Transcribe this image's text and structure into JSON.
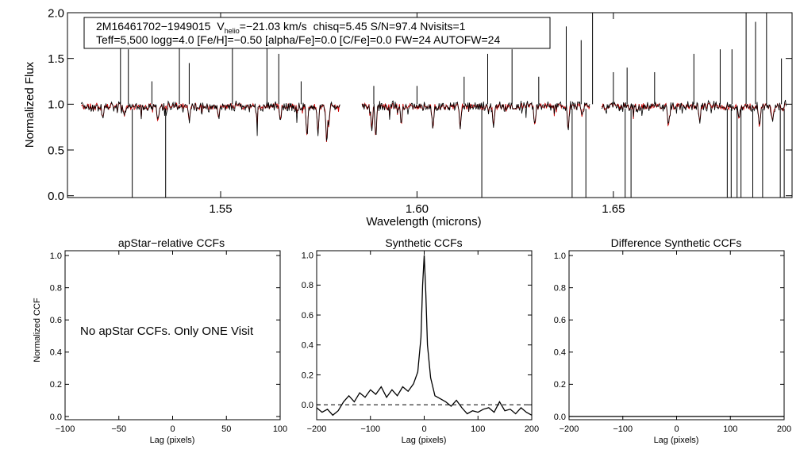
{
  "chart_data": [
    {
      "type": "line",
      "ylabel": "Normalized Flux",
      "xlabel": "Wavelength (microns)",
      "xlim": [
        1.511,
        1.6955
      ],
      "ylim": [
        -0.02,
        2.0
      ],
      "xticks": [
        {
          "v": 1.55,
          "label": "1.55"
        },
        {
          "v": 1.6,
          "label": "1.60"
        },
        {
          "v": 1.65,
          "label": "1.65"
        }
      ],
      "yticks": [
        {
          "v": 0.0,
          "label": "0.0"
        },
        {
          "v": 0.5,
          "label": "0.5"
        },
        {
          "v": 1.0,
          "label": "1.0"
        },
        {
          "v": 1.5,
          "label": "1.5"
        },
        {
          "v": 2.0,
          "label": "2.0"
        }
      ],
      "info_line1": {
        "star": "2M16461702−1949015",
        "v_label": "V",
        "v_sub": "helio",
        "v_value": "=−21.03 km/s",
        "rest": "chisq=5.45  S/N=97.4  Nvisits=1"
      },
      "info_line2": "Teff=5,500 logg=4.0 [Fe/H]=−0.50 [alpha/Fe]=0.0 [C/Fe]=0.0 FW=24 AUTOFW=24",
      "colors": {
        "observed": "#000000",
        "model": "#cc0000"
      },
      "chips": [
        [
          1.5145,
          1.5805
        ],
        [
          1.586,
          1.644
        ],
        [
          1.647,
          1.694
        ]
      ],
      "emission_spikes": [
        [
          1.5245,
          1.75
        ],
        [
          1.5265,
          1.6
        ],
        [
          1.5325,
          1.25
        ],
        [
          1.5395,
          1.85
        ],
        [
          1.542,
          1.45
        ],
        [
          1.553,
          1.75
        ],
        [
          1.5618,
          1.85
        ],
        [
          1.5648,
          1.55
        ],
        [
          1.5705,
          1.25
        ],
        [
          1.589,
          1.2
        ],
        [
          1.6,
          1.2
        ],
        [
          1.612,
          1.3
        ],
        [
          1.618,
          1.55
        ],
        [
          1.6242,
          1.6
        ],
        [
          1.631,
          1.3
        ],
        [
          1.638,
          1.85
        ],
        [
          1.6418,
          1.7
        ],
        [
          1.6447,
          2.0
        ],
        [
          1.65,
          1.35
        ],
        [
          1.6535,
          1.4
        ],
        [
          1.6605,
          1.35
        ],
        [
          1.6705,
          1.55
        ],
        [
          1.6772,
          1.6
        ],
        [
          1.6802,
          1.6
        ],
        [
          1.6838,
          2.0
        ],
        [
          1.6862,
          1.9
        ],
        [
          1.689,
          2.0
        ],
        [
          1.6928,
          1.5
        ]
      ],
      "bad_pixels": [
        1.5275,
        1.536,
        1.6165,
        1.6395,
        1.643,
        1.653,
        1.6545,
        1.679,
        1.68,
        1.6815,
        1.6825,
        1.6855,
        1.688,
        1.6925,
        1.6935
      ],
      "model_absorptions": [
        [
          1.52,
          0.84
        ],
        [
          1.5255,
          0.86
        ],
        [
          1.534,
          0.8
        ],
        [
          1.542,
          0.8
        ],
        [
          1.5495,
          0.84
        ],
        [
          1.5592,
          0.86
        ],
        [
          1.5652,
          0.82
        ],
        [
          1.572,
          0.6
        ],
        [
          1.5748,
          0.68
        ],
        [
          1.577,
          0.55
        ],
        [
          1.5775,
          0.75
        ],
        [
          1.5885,
          0.72
        ],
        [
          1.5895,
          0.6
        ],
        [
          1.596,
          0.76
        ],
        [
          1.604,
          0.74
        ],
        [
          1.611,
          0.72
        ],
        [
          1.6195,
          0.76
        ],
        [
          1.63,
          0.74
        ],
        [
          1.6385,
          0.7
        ],
        [
          1.642,
          0.86
        ],
        [
          1.664,
          0.72
        ],
        [
          1.672,
          0.8
        ],
        [
          1.682,
          0.82
        ],
        [
          1.6872,
          0.72
        ],
        [
          1.6905,
          0.8
        ]
      ]
    },
    {
      "type": "line",
      "title": "apStar−relative CCFs",
      "ylabel": "Normalized CCF",
      "xlabel": "Lag (pixels)",
      "xlim": [
        -100,
        100
      ],
      "ylim": [
        -0.02,
        1.03
      ],
      "xticks": [
        {
          "v": -100,
          "label": "−100"
        },
        {
          "v": -50,
          "label": "−50"
        },
        {
          "v": 0,
          "label": "0"
        },
        {
          "v": 50,
          "label": "50"
        },
        {
          "v": 100,
          "label": "100"
        }
      ],
      "yticks": [
        {
          "v": 0.0,
          "label": "0.0"
        },
        {
          "v": 0.2,
          "label": "0.2"
        },
        {
          "v": 0.4,
          "label": "0.4"
        },
        {
          "v": 0.6,
          "label": "0.6"
        },
        {
          "v": 0.8,
          "label": "0.8"
        },
        {
          "v": 1.0,
          "label": "1.0"
        }
      ],
      "message": "No apStar CCFs.  Only ONE Visit",
      "series": []
    },
    {
      "type": "line",
      "title": "Synthetic CCFs",
      "xlabel": "Lag (pixels)",
      "xlim": [
        -200,
        200
      ],
      "ylim": [
        -0.1,
        1.03
      ],
      "xticks": [
        {
          "v": -200,
          "label": "−200"
        },
        {
          "v": -100,
          "label": "−100"
        },
        {
          "v": 0,
          "label": "0"
        },
        {
          "v": 100,
          "label": "100"
        },
        {
          "v": 200,
          "label": "200"
        }
      ],
      "yticks": [
        {
          "v": 0.0,
          "label": "0.0"
        },
        {
          "v": 0.2,
          "label": "0.2"
        },
        {
          "v": 0.4,
          "label": "0.4"
        },
        {
          "v": 0.6,
          "label": "0.6"
        },
        {
          "v": 0.8,
          "label": "0.8"
        },
        {
          "v": 1.0,
          "label": "1.0"
        }
      ],
      "zero_line": 0.0,
      "series": [
        {
          "x": [
            -200,
            -190,
            -180,
            -170,
            -160,
            -150,
            -140,
            -130,
            -120,
            -110,
            -100,
            -90,
            -80,
            -70,
            -60,
            -50,
            -40,
            -30,
            -20,
            -12,
            -6,
            -3,
            0,
            3,
            6,
            12,
            20,
            30,
            40,
            50,
            60,
            70,
            80,
            90,
            100,
            110,
            120,
            130,
            140,
            150,
            160,
            170,
            180,
            190,
            200
          ],
          "y": [
            -0.02,
            -0.05,
            -0.03,
            -0.07,
            -0.04,
            0.02,
            0.06,
            0.02,
            0.08,
            0.05,
            0.1,
            0.07,
            0.12,
            0.05,
            0.1,
            0.06,
            0.12,
            0.09,
            0.14,
            0.22,
            0.45,
            0.8,
            1.0,
            0.75,
            0.4,
            0.18,
            0.06,
            0.04,
            0.02,
            -0.01,
            0.03,
            -0.02,
            -0.06,
            -0.04,
            -0.05,
            -0.03,
            -0.02,
            -0.05,
            0.02,
            -0.04,
            -0.03,
            -0.06,
            -0.02,
            -0.05,
            -0.07
          ]
        }
      ]
    },
    {
      "type": "line",
      "title": "Difference Synthetic CCFs",
      "xlabel": "Lag (pixels)",
      "xlim": [
        -200,
        200
      ],
      "ylim": [
        -0.02,
        1.03
      ],
      "xticks": [
        {
          "v": -200,
          "label": "−200"
        },
        {
          "v": -100,
          "label": "−100"
        },
        {
          "v": 0,
          "label": "0"
        },
        {
          "v": 100,
          "label": "100"
        },
        {
          "v": 200,
          "label": "200"
        }
      ],
      "yticks": [
        {
          "v": 0.0,
          "label": "0.0"
        },
        {
          "v": 0.2,
          "label": "0.2"
        },
        {
          "v": 0.4,
          "label": "0.4"
        },
        {
          "v": 0.6,
          "label": "0.6"
        },
        {
          "v": 0.8,
          "label": "0.8"
        },
        {
          "v": 1.0,
          "label": "1.0"
        }
      ],
      "series": [
        {
          "x": [
            -200,
            200
          ],
          "y": [
            0.0,
            0.0
          ]
        }
      ]
    }
  ]
}
